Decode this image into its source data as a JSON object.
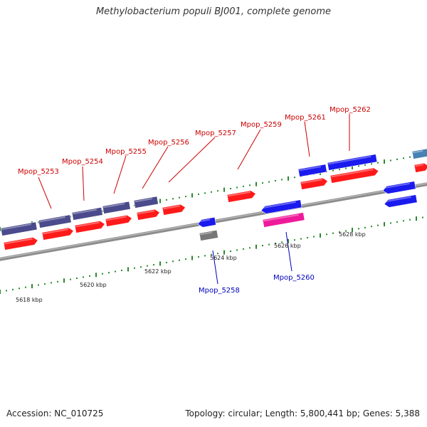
{
  "title": "Methylobacterium populi BJ001, complete genome",
  "footer": {
    "accession": "Accession: NC_010725",
    "summary": "Topology: circular; Length: 5,800,441 bp; Genes: 5,388"
  },
  "colors": {
    "backbone": "#8c8c8c",
    "tick_major": "#2a8a2a",
    "tick_minor": "#2a8a2a",
    "forward_label": "#cc0000",
    "reverse_label": "#0000bb",
    "cds_red": "#ff1a1a",
    "cds_purple": "#4a4a8c",
    "cds_blue": "#1a1aee",
    "cds_magenta": "#ee1a99",
    "cds_gray": "#777777",
    "cds_steel": "#4682b4"
  },
  "kbp_labels": [
    "5618 kbp",
    "5620 kbp",
    "5622 kbp",
    "5624 kbp",
    "5626 kbp",
    "5628 kbp"
  ],
  "gene_labels": [
    {
      "name": "Mpop_5253",
      "strand": "forward"
    },
    {
      "name": "Mpop_5254",
      "strand": "forward"
    },
    {
      "name": "Mpop_5255",
      "strand": "forward"
    },
    {
      "name": "Mpop_5256",
      "strand": "forward"
    },
    {
      "name": "Mpop_5257",
      "strand": "forward"
    },
    {
      "name": "Mpop_5259",
      "strand": "forward"
    },
    {
      "name": "Mpop_5261",
      "strand": "forward"
    },
    {
      "name": "Mpop_5262",
      "strand": "forward"
    },
    {
      "name": "Mpop_5258",
      "strand": "reverse"
    },
    {
      "name": "Mpop_5260",
      "strand": "reverse"
    }
  ]
}
